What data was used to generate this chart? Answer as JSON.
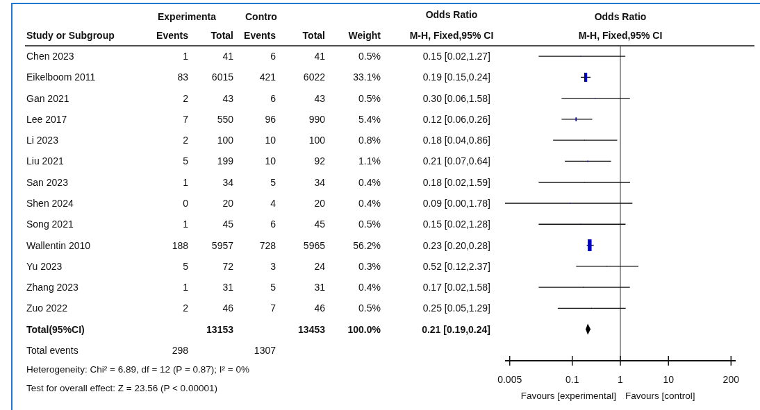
{
  "chart_data": [
    {
      "type": "other",
      "ylabel": "Study or Subgroup",
      "data_labels": true,
      "categories": [
        "Chen 2023",
        "Eikelboom 2011",
        "Gan 2021",
        "Lee 2017",
        "Li 2023",
        "Liu 2021",
        "San 2023",
        "Shen 2024",
        "Song 2021",
        "Wallentin 2010",
        "Yu 2023",
        "Zhang 2023",
        "Zuo 2022",
        "Total(95%CI)",
        "Total events"
      ],
      "series": [
        {
          "name": "Events",
          "values": [
            1,
            83,
            2,
            7,
            2,
            5,
            1,
            0,
            1,
            188,
            5,
            1,
            2,
            null,
            298
          ]
        },
        {
          "name": "Total",
          "values": [
            41,
            6015,
            43,
            550,
            100,
            199,
            34,
            20,
            45,
            5957,
            72,
            31,
            46,
            13153,
            null
          ]
        },
        {
          "name": "Events",
          "values": [
            6,
            421,
            6,
            96,
            10,
            10,
            5,
            4,
            6,
            728,
            3,
            5,
            7,
            null,
            1307
          ]
        },
        {
          "name": "Total",
          "values": [
            41,
            6022,
            43,
            990,
            100,
            92,
            34,
            20,
            45,
            5965,
            24,
            31,
            46,
            13453,
            null
          ]
        },
        {
          "name": "Weight",
          "values": [
            0.5,
            33.1,
            0.5,
            5.4,
            0.8,
            1.1,
            0.4,
            0.4,
            0.5,
            56.2,
            0.3,
            0.4,
            0.5,
            100.0,
            null
          ],
          "value_labels": [
            "0.5%",
            "33.1%",
            "0.5%",
            "5.4%",
            "0.8%",
            "1.1%",
            "0.4%",
            "0.4%",
            "0.5%",
            "56.2%",
            "0.3%",
            "0.4%",
            "0.5%",
            "100.0%",
            null
          ]
        },
        {
          "name": "Odds Ratio\nM-H, Fixed,95% CI",
          "values": [
            0.15,
            0.19,
            0.3,
            0.12,
            0.18,
            0.21,
            0.18,
            0.09,
            0.15,
            0.23,
            0.52,
            0.17,
            0.25,
            0.21,
            null
          ],
          "value_labels": [
            "0.15 [0.02,1.27]",
            "0.19 [0.15,0.24]",
            "0.30 [0.06,1.58]",
            "0.12 [0.06,0.26]",
            "0.18 [0.04,0.86]",
            "0.21 [0.07,0.64]",
            "0.18 [0.02,1.59]",
            "0.09 [0.00,1.78]",
            "0.15 [0.02,1.28]",
            "0.23 [0.20,0.28]",
            "0.52 [0.12,2.37]",
            "0.17 [0.02,1.58]",
            "0.25 [0.05,1.29]",
            "0.21 [0.19,0.24]",
            null
          ]
        }
      ],
      "annotations": [
        "Experimenta",
        "Contro",
        "Heterogeneity: Chi² = 6.89, df = 12 (P = 0.87); I² = 0%",
        "Test for overall effect: Z = 23.56 (P < 0.00001)"
      ]
    },
    {
      "type": "bubble",
      "orientation": "horizontal",
      "title": "Odds Ratio",
      "subtitle": "M-H, Fixed,95% CI",
      "marker": "square",
      "categories": [
        null,
        null,
        null,
        null,
        null,
        null,
        null,
        null,
        null,
        null,
        null,
        null,
        null,
        null,
        null
      ],
      "series": [
        {
          "color": "#0000b8",
          "values": [
            0.15,
            0.19,
            0.3,
            0.12,
            0.18,
            0.21,
            0.18,
            0.09,
            0.15,
            0.23,
            0.52,
            0.17,
            0.25,
            null,
            null
          ],
          "errors": [
            [
              0.02,
              1.27
            ],
            [
              0.15,
              0.24
            ],
            [
              0.06,
              1.58
            ],
            [
              0.06,
              0.26
            ],
            [
              0.04,
              0.86
            ],
            [
              0.07,
              0.64
            ],
            [
              0.02,
              1.59
            ],
            [
              0.004,
              1.78
            ],
            [
              0.02,
              1.28
            ],
            [
              0.2,
              0.28
            ],
            [
              0.12,
              2.37
            ],
            [
              0.02,
              1.58
            ],
            [
              0.05,
              1.29
            ],
            null,
            null
          ],
          "sizes": [
            0.01,
            0.59,
            0.01,
            0.1,
            0.01,
            0.02,
            0.01,
            0.01,
            0.01,
            1,
            0.01,
            0.01,
            0.01,
            null,
            null
          ]
        },
        {
          "type": "scatter",
          "marker": "diamond",
          "color": "#000000",
          "values": [
            null,
            null,
            null,
            null,
            null,
            null,
            null,
            null,
            null,
            null,
            null,
            null,
            null,
            0.21,
            null
          ],
          "errors": [
            null,
            null,
            null,
            null,
            null,
            null,
            null,
            null,
            null,
            null,
            null,
            null,
            null,
            [
              0.19,
              0.24
            ],
            null
          ]
        }
      ],
      "xlim": [
        0.004,
        250
      ],
      "xticks": [
        0.005,
        0.1,
        1,
        10,
        200
      ],
      "log": "x",
      "ref_lines": [
        {
          "axis": "x",
          "value": 1
        }
      ],
      "annotations": [
        "Favours [experimental]",
        "Favours [control]"
      ]
    }
  ]
}
